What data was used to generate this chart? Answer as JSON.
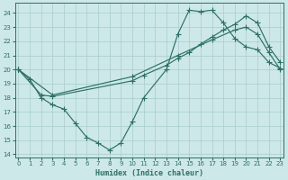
{
  "bg_color": "#cde8e8",
  "grid_color": "#a8cccc",
  "line_color": "#2d7068",
  "xlabel": "Humidex (Indice chaleur)",
  "xlim": [
    -0.3,
    23.3
  ],
  "ylim": [
    13.8,
    24.7
  ],
  "yticks": [
    14,
    15,
    16,
    17,
    18,
    19,
    20,
    21,
    22,
    23,
    24
  ],
  "xticks": [
    0,
    1,
    2,
    3,
    4,
    5,
    6,
    7,
    8,
    9,
    10,
    11,
    12,
    13,
    14,
    15,
    16,
    17,
    18,
    19,
    20,
    21,
    22,
    23
  ],
  "line1_x": [
    0,
    1,
    2,
    3,
    4,
    5,
    6,
    7,
    8,
    9,
    10,
    11,
    13,
    14,
    15,
    16,
    17,
    18,
    19,
    20,
    21,
    22,
    23
  ],
  "line1_y": [
    20.0,
    19.3,
    18.0,
    17.5,
    17.2,
    16.2,
    15.2,
    14.8,
    14.3,
    14.8,
    16.3,
    18.0,
    20.0,
    22.5,
    24.2,
    24.1,
    24.2,
    23.3,
    22.2,
    21.6,
    21.4,
    20.5,
    20.1
  ],
  "line2_x": [
    0,
    2,
    3,
    10,
    11,
    13,
    14,
    15,
    16,
    17,
    18,
    19,
    20,
    21,
    22,
    23
  ],
  "line2_y": [
    20.0,
    18.2,
    18.1,
    19.2,
    19.6,
    20.3,
    20.8,
    21.2,
    21.8,
    22.3,
    22.8,
    23.2,
    23.8,
    23.3,
    21.6,
    20.5
  ],
  "line3_x": [
    0,
    3,
    10,
    14,
    17,
    19,
    20,
    21,
    22,
    23
  ],
  "line3_y": [
    20.0,
    18.2,
    19.5,
    21.0,
    22.1,
    22.8,
    23.0,
    22.5,
    21.2,
    20.0
  ]
}
